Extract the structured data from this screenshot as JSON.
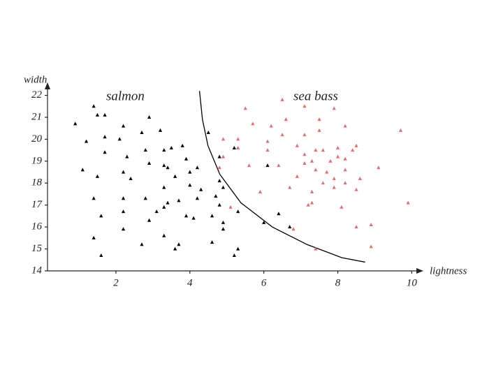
{
  "chart_data": {
    "type": "scatter",
    "xlabel": "lightness",
    "ylabel": "width",
    "xlim": [
      0.15,
      10.2
    ],
    "ylim": [
      14,
      22.4
    ],
    "xticks": [
      2,
      4,
      6,
      8,
      10
    ],
    "yticks": [
      14,
      15,
      16,
      17,
      18,
      19,
      20,
      21,
      22
    ],
    "series": [
      {
        "name": "salmon",
        "color": "#000000",
        "x": [
          0.9,
          1.4,
          1.5,
          1.7,
          1.2,
          1.1,
          1.5,
          1.7,
          1.7,
          1.4,
          1.6,
          1.4,
          1.6,
          2.2,
          2.1,
          2.3,
          2.2,
          2.4,
          2.2,
          2.2,
          2.2,
          2.7,
          2.9,
          2.8,
          2.9,
          2.8,
          2.9,
          2.7,
          3.2,
          3.3,
          3.3,
          3.3,
          3.1,
          3.3,
          3.4,
          3.3,
          3.5,
          3.4,
          3.8,
          3.6,
          3.6,
          3.7,
          3.7,
          3.9,
          3.9,
          4.0,
          4.0,
          4.1,
          4.2,
          4.3,
          4.2,
          4.5,
          4.6,
          4.6,
          4.7,
          4.8,
          4.8,
          4.9,
          4.9,
          4.8,
          4.9,
          5.2,
          5.3,
          5.3,
          5.2,
          6.1,
          6.0,
          6.4,
          6.7
        ],
        "values": [
          20.7,
          21.5,
          21.1,
          21.1,
          19.9,
          18.6,
          18.3,
          19.4,
          20.1,
          17.3,
          16.5,
          15.5,
          14.7,
          20.6,
          20.0,
          19.2,
          18.5,
          18.2,
          17.3,
          16.7,
          15.9,
          20.3,
          21.0,
          19.5,
          18.9,
          17.3,
          16.3,
          15.2,
          20.4,
          19.5,
          18.8,
          17.8,
          16.7,
          16.9,
          17.1,
          15.6,
          19.6,
          18.7,
          19.7,
          18.3,
          15.0,
          15.2,
          17.2,
          16.5,
          19.1,
          18.5,
          17.9,
          16.4,
          18.7,
          17.7,
          17.3,
          20.3,
          16.5,
          15.3,
          17.4,
          17.0,
          19.2,
          16.2,
          15.9,
          18.1,
          17.8,
          19.6,
          16.7,
          15.0,
          14.7,
          18.8,
          16.2,
          16.6,
          16.0
        ]
      },
      {
        "name": "sea bass",
        "color": "#e07070",
        "x": [
          5.5,
          6.5,
          7.1,
          7.9,
          5.7,
          6.2,
          6.6,
          7.5,
          8.2,
          9.7,
          4.9,
          5.3,
          6.1,
          6.5,
          7.1,
          7.5,
          6.9,
          6.1,
          5.3,
          4.9,
          7.1,
          7.4,
          7.6,
          8.0,
          8.5,
          8.4,
          8.2,
          8.0,
          7.8,
          7.3,
          7.1,
          6.4,
          5.6,
          4.8,
          7.4,
          7.7,
          8.2,
          9.1,
          6.9,
          7.9,
          8.6,
          8.2,
          7.6,
          8.5,
          7.9,
          7.3,
          5.9,
          6.7,
          7.3,
          8.1,
          7.2,
          9.9,
          5.1,
          8.9,
          8.5,
          6.8,
          7.4,
          8.9
        ],
        "values": [
          21.4,
          21.8,
          21.5,
          21.4,
          20.7,
          20.6,
          20.9,
          20.9,
          20.6,
          20.4,
          20.0,
          20.0,
          19.9,
          20.2,
          20.2,
          20.4,
          19.7,
          19.5,
          19.6,
          19.2,
          19.3,
          19.5,
          19.5,
          19.6,
          19.7,
          19.5,
          19.1,
          19.2,
          19.0,
          19.0,
          18.9,
          18.8,
          18.8,
          18.7,
          18.6,
          18.5,
          18.6,
          18.7,
          18.3,
          18.2,
          18.2,
          18.0,
          18.0,
          17.7,
          17.8,
          17.6,
          17.6,
          17.8,
          17.1,
          16.9,
          17.0,
          17.1,
          16.9,
          16.1,
          16.0,
          15.9,
          15.0,
          15.1
        ]
      }
    ],
    "boundary": {
      "color": "#000000",
      "x": [
        4.26,
        4.34,
        4.49,
        4.81,
        5.38,
        6.23,
        7.17,
        8.11,
        8.74
      ],
      "y": [
        22.2,
        20.9,
        19.7,
        18.4,
        17.1,
        16.0,
        15.2,
        14.6,
        14.4
      ]
    }
  }
}
